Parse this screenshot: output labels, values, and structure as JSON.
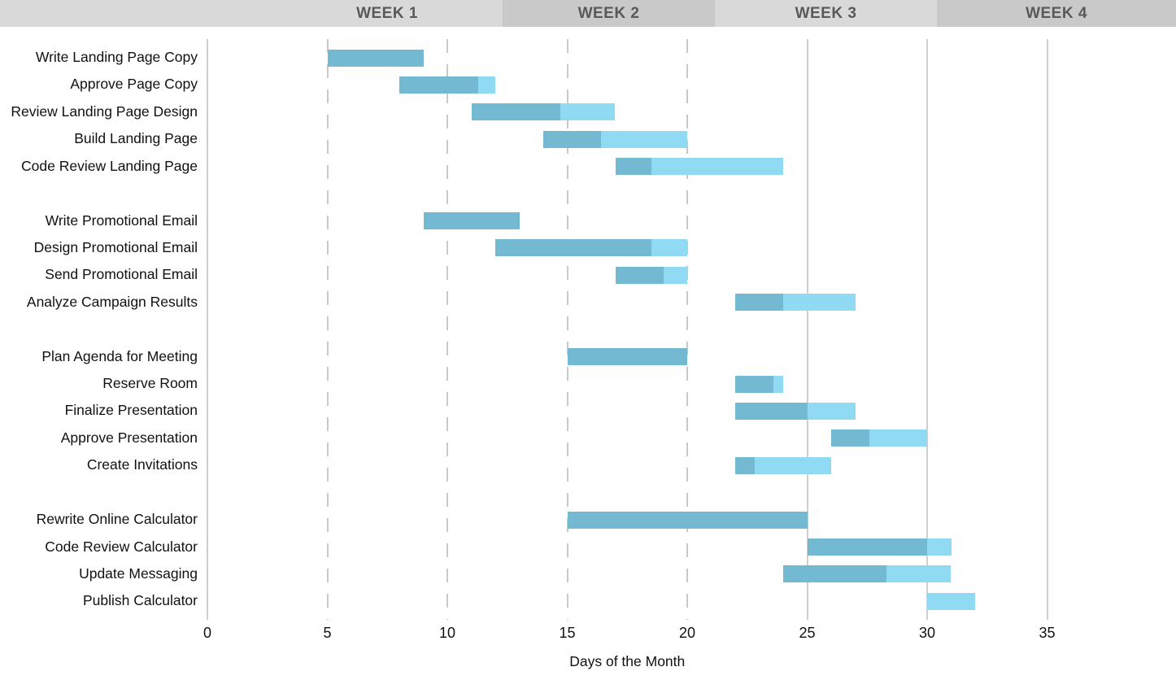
{
  "header": {
    "weeks": [
      "WEEK 1",
      "WEEK 2",
      "WEEK 3",
      "WEEK 4"
    ]
  },
  "colors": {
    "bar_complete": "#74b9d2",
    "bar_remaining": "#90daf3",
    "header_light": "#d9d9d9",
    "header_dark": "#c9c9c9",
    "gridline_solid": "#cfcfcf",
    "gridline_dashed": "#c9c9c9",
    "header_text": "#595959",
    "label_text": "#111111"
  },
  "chart_data": {
    "type": "bar",
    "variant": "gantt",
    "title": "",
    "xlabel": "Days of the Month",
    "ylabel": "",
    "xlim": [
      0,
      40
    ],
    "x_ticks": [
      0,
      5,
      10,
      15,
      20,
      25,
      30,
      35
    ],
    "gridlines": {
      "solid_days": [
        0,
        25,
        30,
        35
      ],
      "dashed_days": [
        5,
        10,
        15,
        20
      ]
    },
    "legend": "darker segment = completed portion, lighter segment = remaining",
    "groups": [
      {
        "name": "landing-page",
        "tasks": [
          {
            "label": "Write Landing Page Copy",
            "start": 5,
            "end": 9,
            "completed_through": 9
          },
          {
            "label": "Approve Page Copy",
            "start": 8,
            "end": 12,
            "completed_through": 11.3
          },
          {
            "label": "Review Landing Page Design",
            "start": 11,
            "end": 17,
            "completed_through": 14.7
          },
          {
            "label": "Build Landing Page",
            "start": 14,
            "end": 20,
            "completed_through": 16.4
          },
          {
            "label": "Code Review Landing Page",
            "start": 17,
            "end": 24,
            "completed_through": 18.5
          }
        ]
      },
      {
        "name": "promotional-email",
        "tasks": [
          {
            "label": "Write Promotional Email",
            "start": 9,
            "end": 13,
            "completed_through": 13
          },
          {
            "label": "Design Promotional Email",
            "start": 12,
            "end": 20,
            "completed_through": 18.5
          },
          {
            "label": "Send Promotional Email",
            "start": 17,
            "end": 20,
            "completed_through": 19
          },
          {
            "label": "Analyze Campaign Results",
            "start": 22,
            "end": 27,
            "completed_through": 24
          }
        ]
      },
      {
        "name": "meeting",
        "tasks": [
          {
            "label": "Plan Agenda for Meeting",
            "start": 15,
            "end": 20,
            "completed_through": 20
          },
          {
            "label": "Reserve Room",
            "start": 22,
            "end": 24,
            "completed_through": 23.6
          },
          {
            "label": "Finalize Presentation",
            "start": 22,
            "end": 27,
            "completed_through": 25
          },
          {
            "label": "Approve Presentation",
            "start": 26,
            "end": 30,
            "completed_through": 27.6
          },
          {
            "label": "Create Invitations",
            "start": 22,
            "end": 26,
            "completed_through": 22.8
          }
        ]
      },
      {
        "name": "calculator",
        "tasks": [
          {
            "label": "Rewrite Online Calculator",
            "start": 15,
            "end": 25,
            "completed_through": 25
          },
          {
            "label": "Code Review Calculator",
            "start": 25,
            "end": 31,
            "completed_through": 30
          },
          {
            "label": "Update Messaging",
            "start": 24,
            "end": 31,
            "completed_through": 28.3
          },
          {
            "label": "Publish Calculator",
            "start": 30,
            "end": 32,
            "completed_through": 30
          }
        ]
      }
    ]
  }
}
